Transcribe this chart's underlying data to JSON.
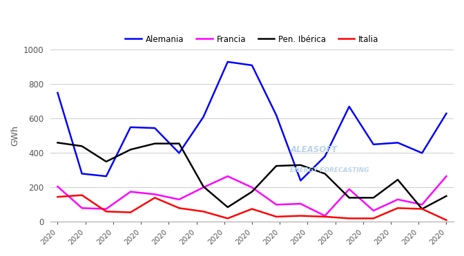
{
  "ylabel": "GWh",
  "ylim": [
    0,
    1000
  ],
  "yticks": [
    0,
    200,
    400,
    600,
    800,
    1000
  ],
  "x_labels": [
    "2020",
    "2020",
    "2020",
    "2020",
    "2020",
    "2020",
    "2020",
    "2020",
    "2020",
    "2020",
    "2020",
    "2020",
    "2020",
    "2020",
    "2020"
  ],
  "series": {
    "Alemania": {
      "color": "#0000FF",
      "linewidth": 1.8,
      "values": [
        750,
        280,
        265,
        550,
        545,
        400,
        610,
        930,
        910,
        620,
        240,
        380,
        670,
        450,
        460,
        400,
        630
      ]
    },
    "Francia": {
      "color": "#FF00FF",
      "linewidth": 1.8,
      "values": [
        205,
        80,
        75,
        175,
        160,
        130,
        200,
        265,
        200,
        100,
        105,
        35,
        190,
        65,
        130,
        100,
        265
      ]
    },
    "Pen. Ibérica": {
      "color": "#000000",
      "linewidth": 1.8,
      "values": [
        460,
        440,
        350,
        420,
        455,
        455,
        205,
        85,
        175,
        325,
        330,
        280,
        140,
        140,
        245,
        75,
        150
      ]
    },
    "Italia": {
      "color": "#FF0000",
      "linewidth": 1.8,
      "values": [
        145,
        155,
        60,
        55,
        140,
        80,
        60,
        20,
        75,
        30,
        35,
        30,
        20,
        20,
        80,
        75,
        10
      ]
    }
  },
  "legend_order": [
    "Alemania",
    "Francia",
    "Pen. Ibérica",
    "Italia"
  ],
  "watermark_line1": "ALEASOFT",
  "watermark_line2": "ENERGY FORECASTING",
  "watermark_color": "#b8d4e8",
  "background_color": "#ffffff",
  "grid_color": "#cccccc",
  "figwidth": 6.72,
  "figheight": 3.72,
  "dpi": 100
}
